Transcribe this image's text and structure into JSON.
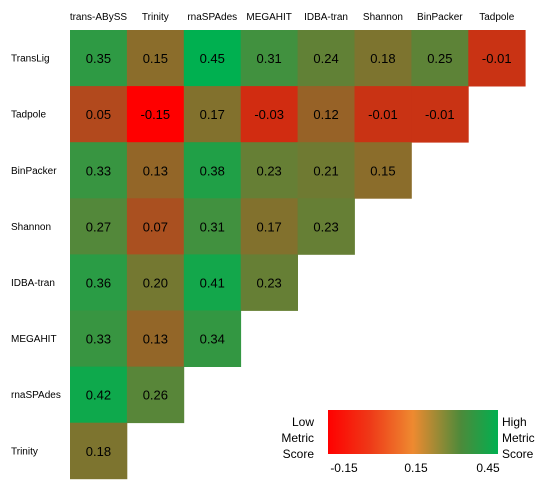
{
  "chart_data": {
    "type": "heatmap",
    "columns": [
      "trans-ABySS",
      "Trinity",
      "rnaSPAdes",
      "MEGAHIT",
      "IDBA-tran",
      "Shannon",
      "BinPacker",
      "Tadpole"
    ],
    "rows": [
      "TransLig",
      "Tadpole",
      "BinPacker",
      "Shannon",
      "IDBA-tran",
      "MEGAHIT",
      "rnaSPAdes",
      "Trinity"
    ],
    "cells": [
      [
        "0.35",
        "0.15",
        "0.45",
        "0.31",
        "0.24",
        "0.18",
        "0.25",
        "-0.01"
      ],
      [
        "0.05",
        "-0.15",
        "0.17",
        "-0.03",
        "0.12",
        "-0.01",
        "-0.01"
      ],
      [
        "0.33",
        "0.13",
        "0.38",
        "0.23",
        "0.21",
        "0.15"
      ],
      [
        "0.27",
        "0.07",
        "0.31",
        "0.17",
        "0.23"
      ],
      [
        "0.36",
        "0.20",
        "0.41",
        "0.23"
      ],
      [
        "0.33",
        "0.13",
        "0.34"
      ],
      [
        "0.42",
        "0.26"
      ],
      [
        "0.18"
      ]
    ],
    "scale": {
      "min": -0.15,
      "mid": 0.15,
      "max": 0.45
    },
    "colors": {
      "low": "#ff0000",
      "mid": "#8b6d2b",
      "high": "#00b050",
      "gradient_mid": "#ee8a30",
      "gradient_green": "#4d8a3a"
    },
    "legend": {
      "low_lines": [
        "Low",
        "Metric",
        "Score"
      ],
      "high_lines": [
        "High",
        "Metric",
        "Score"
      ],
      "ticks": [
        "-0.15",
        "0.15",
        "0.45"
      ]
    }
  }
}
